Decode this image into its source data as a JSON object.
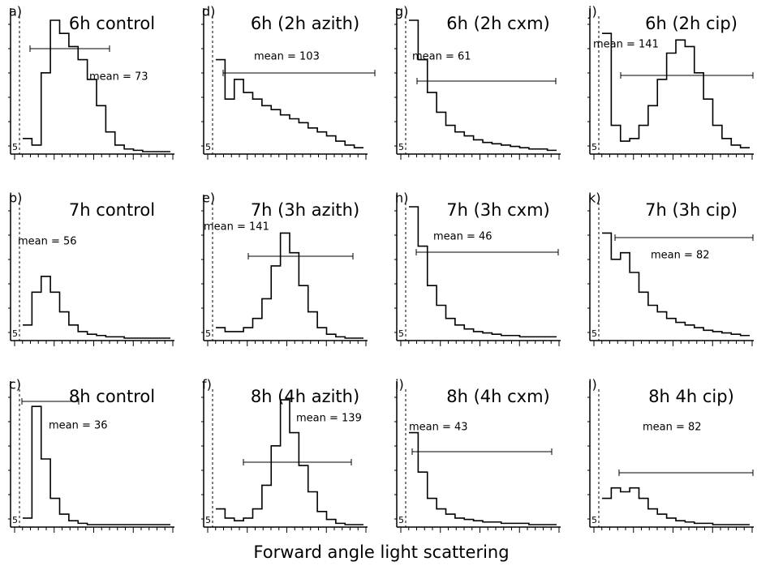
{
  "figure": {
    "x_axis_label": "Forward angle light scattering"
  },
  "chart_data": [
    {
      "type": "line",
      "label": "a)",
      "title": "6h control",
      "annotation": "mean = 73",
      "corner_label": "5",
      "ylim": [
        0,
        100
      ],
      "values": [
        10,
        5,
        60,
        100,
        90,
        80,
        70,
        55,
        35,
        15,
        5,
        2,
        1,
        0,
        0,
        0
      ]
    },
    {
      "type": "line",
      "label": "b)",
      "title": "7h control",
      "annotation": "mean = 56",
      "corner_label": "5",
      "ylim": [
        0,
        100
      ],
      "values": [
        10,
        35,
        47,
        35,
        20,
        10,
        5,
        3,
        2,
        1,
        1,
        0,
        0,
        0,
        0,
        0
      ]
    },
    {
      "type": "line",
      "label": "c)",
      "title": "8h control",
      "annotation": "mean = 36",
      "corner_label": "5",
      "ylim": [
        0,
        100
      ],
      "values": [
        5,
        90,
        50,
        20,
        8,
        3,
        1,
        0,
        0,
        0,
        0,
        0,
        0,
        0,
        0,
        0
      ]
    },
    {
      "type": "line",
      "label": "d)",
      "title": "6h (2h azith)",
      "annotation": "mean = 103",
      "corner_label": "5",
      "ylim": [
        0,
        100
      ],
      "values": [
        70,
        40,
        55,
        45,
        40,
        35,
        32,
        28,
        25,
        22,
        18,
        15,
        12,
        8,
        5,
        3
      ]
    },
    {
      "type": "line",
      "label": "e)",
      "title": "7h (3h azith)",
      "annotation": "mean = 141",
      "corner_label": "5",
      "ylim": [
        0,
        100
      ],
      "values": [
        8,
        5,
        5,
        8,
        15,
        30,
        55,
        80,
        65,
        40,
        20,
        8,
        3,
        1,
        0,
        0
      ]
    },
    {
      "type": "line",
      "label": "f)",
      "title": "8h (4h azith)",
      "annotation": "mean = 139",
      "corner_label": "5",
      "ylim": [
        0,
        100
      ],
      "values": [
        12,
        5,
        3,
        5,
        12,
        30,
        60,
        95,
        70,
        45,
        25,
        10,
        4,
        1,
        0,
        0
      ]
    },
    {
      "type": "line",
      "label": "g)",
      "title": "6h (2h cxm)",
      "annotation": "mean = 61",
      "corner_label": "5",
      "ylim": [
        0,
        100
      ],
      "values": [
        100,
        70,
        45,
        30,
        20,
        15,
        12,
        9,
        7,
        6,
        5,
        4,
        3,
        2,
        2,
        1
      ]
    },
    {
      "type": "line",
      "label": "h)",
      "title": "7h (3h cxm)",
      "annotation": "mean = 46",
      "corner_label": "5",
      "ylim": [
        0,
        100
      ],
      "values": [
        100,
        70,
        40,
        25,
        15,
        10,
        7,
        5,
        4,
        3,
        2,
        2,
        1,
        1,
        1,
        1
      ]
    },
    {
      "type": "line",
      "label": "i)",
      "title": "8h (4h cxm)",
      "annotation": "mean = 43",
      "corner_label": "5",
      "ylim": [
        0,
        100
      ],
      "values": [
        70,
        40,
        20,
        12,
        8,
        5,
        4,
        3,
        2,
        2,
        1,
        1,
        1,
        0,
        0,
        0
      ]
    },
    {
      "type": "line",
      "label": "j)",
      "title": "6h (2h cip)",
      "annotation": "mean = 141",
      "corner_label": "5",
      "ylim": [
        0,
        100
      ],
      "values": [
        90,
        20,
        8,
        10,
        20,
        35,
        55,
        75,
        85,
        80,
        60,
        40,
        20,
        10,
        5,
        3
      ]
    },
    {
      "type": "line",
      "label": "k)",
      "title": "7h (3h cip)",
      "annotation": "mean = 82",
      "corner_label": "5",
      "ylim": [
        0,
        100
      ],
      "values": [
        80,
        60,
        65,
        50,
        35,
        25,
        20,
        15,
        12,
        10,
        8,
        6,
        5,
        4,
        3,
        2
      ]
    },
    {
      "type": "line",
      "label": "l)",
      "title": "8h 4h cip)",
      "annotation": "mean = 82",
      "corner_label": "5",
      "ylim": [
        0,
        100
      ],
      "values": [
        20,
        28,
        25,
        28,
        20,
        12,
        8,
        5,
        3,
        2,
        1,
        1,
        0,
        0,
        0,
        0
      ]
    }
  ]
}
